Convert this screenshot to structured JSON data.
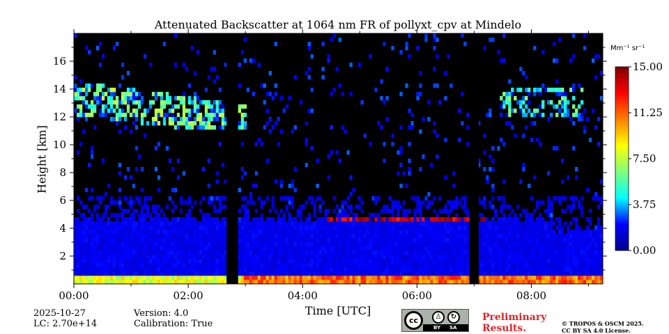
{
  "chart_data": {
    "type": "heatmap",
    "title": "Attenuated Backscatter at 1064 nm FR of pollyxt_cpv at Mindelo",
    "xlabel": "Time [UTC]",
    "ylabel": "Height [km]",
    "xlim_hours": [
      0,
      9.25
    ],
    "ylim_km": [
      0,
      18
    ],
    "x_ticks": [
      {
        "value": 0,
        "label": "00:00"
      },
      {
        "value": 2,
        "label": "02:00"
      },
      {
        "value": 4,
        "label": "04:00"
      },
      {
        "value": 6,
        "label": "06:00"
      },
      {
        "value": 8,
        "label": "08:00"
      }
    ],
    "y_ticks": [
      {
        "value": 2,
        "label": "2"
      },
      {
        "value": 4,
        "label": "4"
      },
      {
        "value": 6,
        "label": "6"
      },
      {
        "value": 8,
        "label": "8"
      },
      {
        "value": 10,
        "label": "10"
      },
      {
        "value": 12,
        "label": "12"
      },
      {
        "value": 14,
        "label": "14"
      },
      {
        "value": 16,
        "label": "16"
      }
    ],
    "colorbar": {
      "unit": "Mm⁻¹ sr⁻¹",
      "min": 0,
      "max": 15,
      "ticks": [
        {
          "value": 0,
          "label": "0.00"
        },
        {
          "value": 3.75,
          "label": "3.75"
        },
        {
          "value": 7.5,
          "label": "7.50"
        },
        {
          "value": 11.25,
          "label": "11.25"
        },
        {
          "value": 15,
          "label": "15.00"
        }
      ],
      "colormap": [
        "#00008f",
        "#0000ff",
        "#00ffff",
        "#7fff7f",
        "#ffff00",
        "#ff7f00",
        "#ff0000",
        "#7f0000"
      ]
    },
    "data_gaps_hours": [
      [
        2.67,
        2.85
      ],
      [
        6.92,
        7.08
      ]
    ],
    "features": [
      {
        "name": "boundary-layer",
        "height_km": [
          0,
          0.6
        ],
        "value": 9
      },
      {
        "name": "aerosol-layer",
        "height_km": [
          0,
          4.5
        ],
        "value": 1.5
      },
      {
        "name": "cloud-top-layer",
        "height_km": 4.5,
        "time_hours": [
          4.4,
          7.2
        ],
        "value": 14
      },
      {
        "name": "cirrus",
        "height_km": [
          11,
          15
        ],
        "time_hours": [
          0,
          3
        ],
        "value": 5
      },
      {
        "name": "cirrus",
        "height_km": [
          12,
          14
        ],
        "time_hours": [
          7.4,
          8.9
        ],
        "value": 4
      }
    ]
  },
  "meta": {
    "date": "2025-10-27",
    "lc": "LC: 2.70e+14",
    "version": "Version: 4.0",
    "calibration": "Calibration: True"
  },
  "license": {
    "cc": "cc",
    "by": "BY",
    "sa": "SA",
    "preliminary": [
      "Preliminary",
      "Results."
    ],
    "copyright": [
      "© TROPOS & OSCM 2025.",
      "CC BY SA 4.0 License."
    ]
  }
}
